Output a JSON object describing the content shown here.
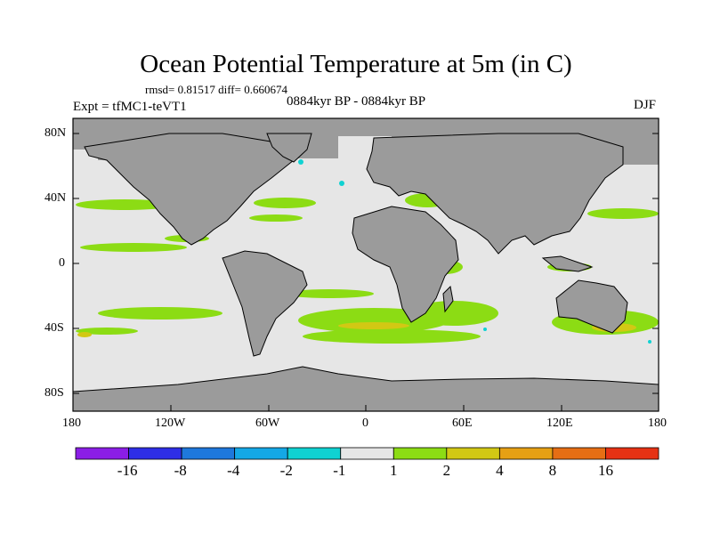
{
  "title": "Ocean Potential Temperature at 5m (in C)",
  "stats": "rmsd= 0.81517 diff= 0.660674",
  "period": "0884kyr BP - 0884kyr BP",
  "experiment": "Expt = tfMC1-teVT1",
  "season": "DJF",
  "map": {
    "projection": "cylindrical equidistant",
    "lon_range": [
      -180,
      180
    ],
    "lat_range": [
      -90,
      90
    ],
    "lat_tick_labels": [
      "80N",
      "40N",
      "0",
      "40S",
      "80S"
    ],
    "lon_tick_labels": [
      "180",
      "120W",
      "60W",
      "0",
      "60E",
      "120E",
      "180"
    ],
    "land_color": "#9b9b9b",
    "ocean_near_zero_color": "#e6e6e6"
  },
  "colorbar": {
    "labels": [
      "-16",
      "-8",
      "-4",
      "-2",
      "-1",
      "1",
      "2",
      "4",
      "8",
      "16"
    ],
    "colors": [
      "#8b1ee6",
      "#2e2ee6",
      "#1e78dc",
      "#14a8e6",
      "#10d2d2",
      "#e6e6e6",
      "#8cdc14",
      "#d2c814",
      "#e6a014",
      "#e66e14",
      "#e63214"
    ]
  }
}
